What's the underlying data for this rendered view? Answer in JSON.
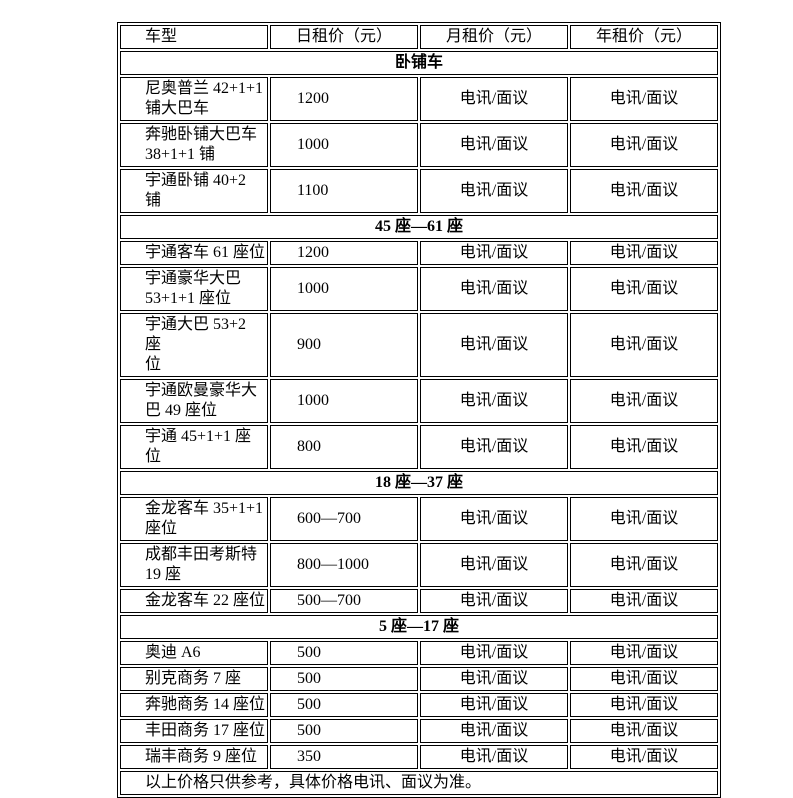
{
  "page": {
    "background_color": "#ffffff",
    "text_color": "#000000",
    "table_border_color": "#000000"
  },
  "table": {
    "columns": [
      "车型",
      "日租价（元）",
      "月租价（元）",
      "年租价（元）"
    ],
    "sections": [
      {
        "title": "卧铺车",
        "rows": [
          {
            "model": "尼奥普兰 42+1+1\n铺大巴车",
            "daily": "1200",
            "monthly": "电讯/面议",
            "yearly": "电讯/面议"
          },
          {
            "model": "奔驰卧铺大巴车\n38+1+1 铺",
            "daily": "1000",
            "monthly": "电讯/面议",
            "yearly": "电讯/面议"
          },
          {
            "model": "宇通卧铺 40+2 铺",
            "daily": "1100",
            "monthly": "电讯/面议",
            "yearly": "电讯/面议"
          }
        ]
      },
      {
        "title": "45 座—61 座",
        "rows": [
          {
            "model": "宇通客车 61 座位",
            "daily": "1200",
            "monthly": "电讯/面议",
            "yearly": "电讯/面议"
          },
          {
            "model": "宇通豪华大巴\n53+1+1 座位",
            "daily": "1000",
            "monthly": "电讯/面议",
            "yearly": "电讯/面议"
          },
          {
            "model": "宇通大巴 53+2 座\n位",
            "daily": "900",
            "monthly": "电讯/面议",
            "yearly": "电讯/面议"
          },
          {
            "model": "宇通欧曼豪华大\n巴 49 座位",
            "daily": "1000",
            "monthly": "电讯/面议",
            "yearly": "电讯/面议"
          },
          {
            "model": "宇通 45+1+1 座位",
            "daily": "800",
            "monthly": "电讯/面议",
            "yearly": "电讯/面议"
          }
        ]
      },
      {
        "title": "18 座—37 座",
        "rows": [
          {
            "model": "金龙客车 35+1+1\n座位",
            "daily": "600—700",
            "monthly": "电讯/面议",
            "yearly": "电讯/面议"
          },
          {
            "model": "成都丰田考斯特\n19 座",
            "daily": "800—1000",
            "monthly": "电讯/面议",
            "yearly": "电讯/面议"
          },
          {
            "model": "金龙客车 22 座位",
            "daily": "500—700",
            "monthly": "电讯/面议",
            "yearly": "电讯/面议"
          }
        ]
      },
      {
        "title": "5 座—17 座",
        "rows": [
          {
            "model": "奥迪 A6",
            "daily": "500",
            "monthly": "电讯/面议",
            "yearly": "电讯/面议"
          },
          {
            "model": "别克商务 7 座",
            "daily": "500",
            "monthly": "电讯/面议",
            "yearly": "电讯/面议"
          },
          {
            "model": "奔驰商务 14 座位",
            "daily": "500",
            "monthly": "电讯/面议",
            "yearly": "电讯/面议"
          },
          {
            "model": "丰田商务 17 座位",
            "daily": "500",
            "monthly": "电讯/面议",
            "yearly": "电讯/面议"
          },
          {
            "model": "瑞丰商务 9 座位",
            "daily": "350",
            "monthly": "电讯/面议",
            "yearly": "电讯/面议"
          }
        ]
      }
    ],
    "footer": "以上价格只供参考，具体价格电讯、面议为准。"
  }
}
